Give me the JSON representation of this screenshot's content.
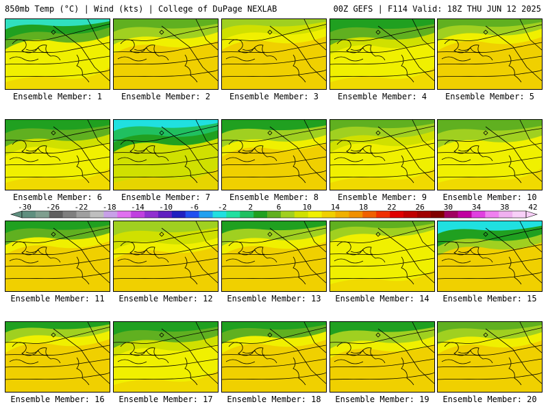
{
  "header": {
    "left": "850mb Temp (°C) | Wind (kts) | College of DuPage NEXLAB",
    "right": "00Z GEFS | F114 Valid: 18Z THU JUN 12 2025"
  },
  "panels": [
    {
      "label": "Ensemble Member: 1"
    },
    {
      "label": "Ensemble Member: 2"
    },
    {
      "label": "Ensemble Member: 3"
    },
    {
      "label": "Ensemble Member: 4"
    },
    {
      "label": "Ensemble Member: 5"
    },
    {
      "label": "Ensemble Member: 6"
    },
    {
      "label": "Ensemble Member: 7"
    },
    {
      "label": "Ensemble Member: 8"
    },
    {
      "label": "Ensemble Member: 9"
    },
    {
      "label": "Ensemble Member: 10"
    },
    {
      "label": "Ensemble Member: 11"
    },
    {
      "label": "Ensemble Member: 12"
    },
    {
      "label": "Ensemble Member: 13"
    },
    {
      "label": "Ensemble Member: 14"
    },
    {
      "label": "Ensemble Member: 15"
    },
    {
      "label": "Ensemble Member: 16"
    },
    {
      "label": "Ensemble Member: 17"
    },
    {
      "label": "Ensemble Member: 18"
    },
    {
      "label": "Ensemble Member: 19"
    },
    {
      "label": "Ensemble Member: 20"
    }
  ],
  "color_scale": {
    "tick_labels": [
      "-30",
      "-26",
      "-22",
      "-18",
      "-14",
      "-10",
      "-6",
      "-2",
      "2",
      "6",
      "10",
      "14",
      "18",
      "22",
      "26",
      "30",
      "34",
      "38",
      "42"
    ],
    "colors": [
      "#5f8f7f",
      "#7f9f8f",
      "#5f5f5f",
      "#7f7f7f",
      "#9f9f9f",
      "#bfbfbf",
      "#c8a0e8",
      "#e070f0",
      "#c040e0",
      "#9030d0",
      "#6020c0",
      "#2020c0",
      "#2050f0",
      "#20a0f0",
      "#20e0e0",
      "#20e0a0",
      "#20c060",
      "#20a020",
      "#60b020",
      "#a0d020",
      "#d0e000",
      "#f0f000",
      "#f0d000",
      "#f0b000",
      "#f09000",
      "#f06000",
      "#f03000",
      "#e00000",
      "#c00000",
      "#a00000",
      "#800000",
      "#a00060",
      "#c000a0",
      "#e040e0",
      "#f080f0",
      "#f0b0f0",
      "#f8d0f8"
    ]
  }
}
